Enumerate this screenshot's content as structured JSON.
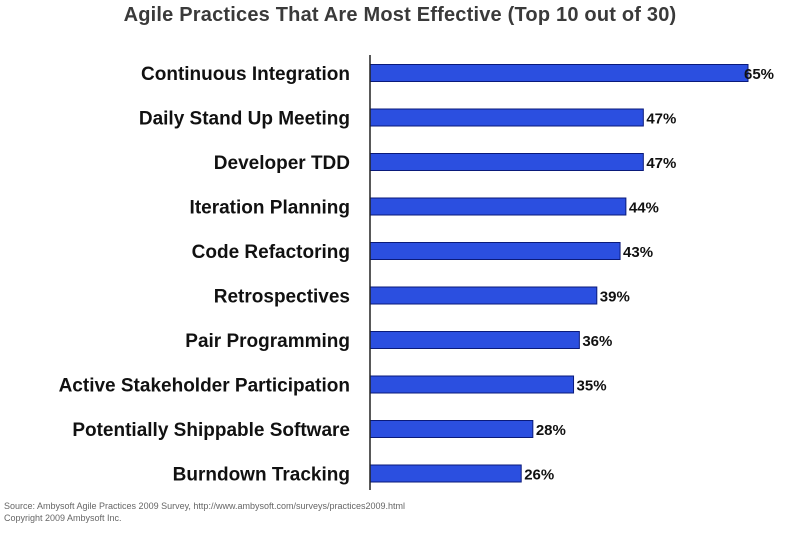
{
  "chart_data": {
    "type": "bar",
    "orientation": "horizontal",
    "title": "Agile Practices That Are Most Effective (Top 10 out of 30)",
    "categories": [
      "Continuous Integration",
      "Daily Stand Up Meeting",
      "Developer TDD",
      "Iteration Planning",
      "Code Refactoring",
      "Retrospectives",
      "Pair Programming",
      "Active Stakeholder Participation",
      "Potentially Shippable Software",
      "Burndown Tracking"
    ],
    "values": [
      65,
      47,
      47,
      44,
      43,
      39,
      36,
      35,
      28,
      26
    ],
    "value_labels": [
      "65%",
      "47%",
      "47%",
      "44%",
      "43%",
      "39%",
      "36%",
      "35%",
      "28%",
      "26%"
    ],
    "unit": "%",
    "bar_color": "#2b4fe0",
    "xlim": [
      0,
      65
    ]
  },
  "source": {
    "line1": "Source: Ambysoft Agile Practices 2009 Survey, http://www.ambysoft.com/surveys/practices2009.html",
    "line2": "Copyright 2009 Ambysoft Inc."
  }
}
